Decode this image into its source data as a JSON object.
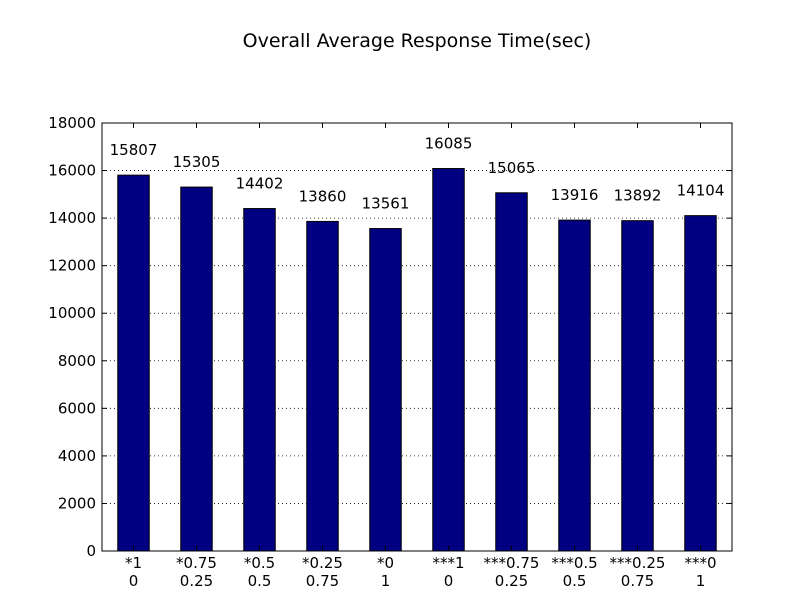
{
  "chart_data": {
    "type": "bar",
    "title": "Overall Average Response Time(sec)",
    "xlabel": "",
    "ylabel": "",
    "categories": [
      [
        "*1",
        "0"
      ],
      [
        "*0.75",
        "0.25"
      ],
      [
        "*0.5",
        "0.5"
      ],
      [
        "*0.25",
        "0.75"
      ],
      [
        "*0",
        "1"
      ],
      [
        "***1",
        "0"
      ],
      [
        "***0.75",
        "0.25"
      ],
      [
        "***0.5",
        "0.5"
      ],
      [
        "***0.25",
        "0.75"
      ],
      [
        "***0",
        "1"
      ]
    ],
    "values": [
      15807,
      15305,
      14402,
      13860,
      13561,
      16085,
      15065,
      13916,
      13892,
      14104
    ],
    "data_labels": [
      "15807",
      "15305",
      "14402",
      "13860",
      "13561",
      "16085",
      "15065",
      "13916",
      "13892",
      "14104"
    ],
    "ylim": [
      0,
      18000
    ],
    "yticks": [
      0,
      2000,
      4000,
      6000,
      8000,
      10000,
      12000,
      14000,
      16000,
      18000
    ],
    "grid": true,
    "legend": "none",
    "colors": {
      "bar": "#000080",
      "bar_edge": "#000000",
      "background": "#ffffff"
    }
  }
}
